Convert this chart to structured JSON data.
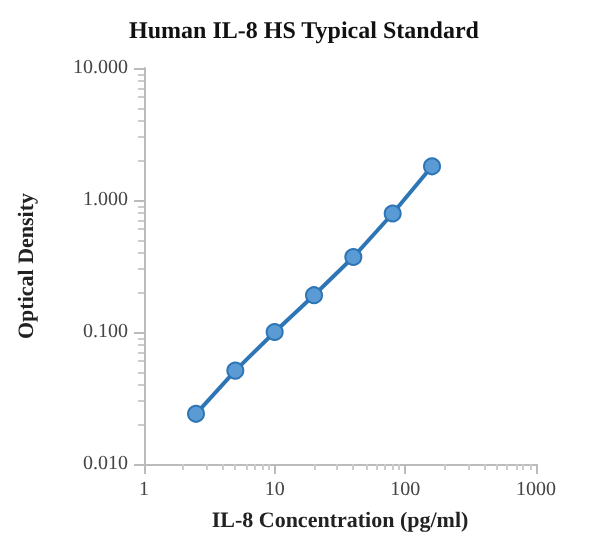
{
  "chart_data": {
    "type": "line",
    "title": "Human IL-8 HS Typical Standard",
    "xlabel": "IL-8 Concentration (pg/ml)",
    "ylabel": "Optical Density",
    "x": [
      2.5,
      5,
      10,
      20,
      40,
      80,
      160
    ],
    "series": [
      {
        "color": "#2e75b6",
        "values": [
          0.024,
          0.051,
          0.1,
          0.19,
          0.37,
          0.79,
          1.8
        ]
      }
    ],
    "log": "xy",
    "xlim": [
      1,
      1000
    ],
    "xticks": [
      1,
      10,
      100,
      1000
    ],
    "ylim": [
      0.01,
      10
    ],
    "yticks": [
      {
        "value": 0.01,
        "label": "0.010"
      },
      {
        "value": 0.1,
        "label": "0.100"
      },
      {
        "value": 1,
        "label": "1.000"
      },
      {
        "value": 10,
        "label": "10.000"
      }
    ],
    "grid": false,
    "marker": "circle",
    "line_style": "solid"
  }
}
